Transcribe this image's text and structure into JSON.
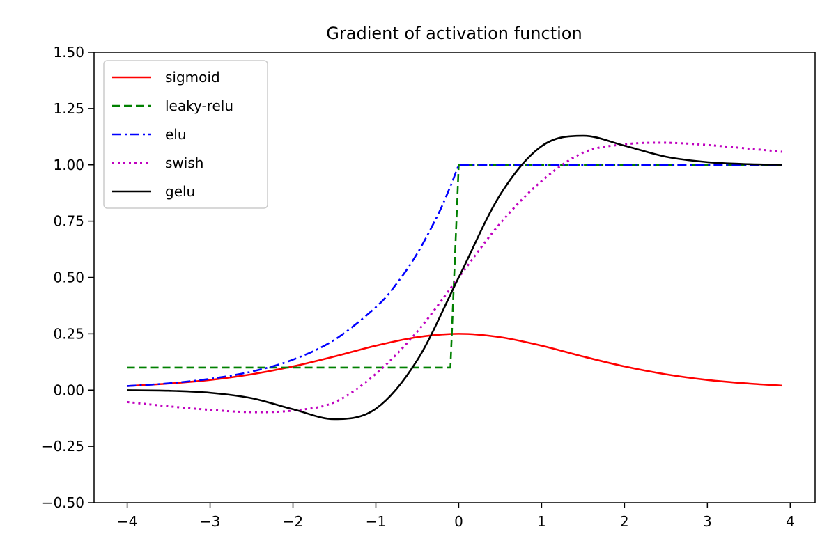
{
  "chart_data": {
    "type": "line",
    "title": "Gradient of activation function",
    "xlabel": "",
    "ylabel": "",
    "xlim": [
      -4.4,
      4.3
    ],
    "ylim": [
      -0.5,
      1.5
    ],
    "x_ticks": [
      -4,
      -3,
      -2,
      -1,
      0,
      1,
      2,
      3,
      4
    ],
    "x_tick_labels": [
      "−4",
      "−3",
      "−2",
      "−1",
      "0",
      "1",
      "2",
      "3",
      "4"
    ],
    "y_ticks": [
      -0.5,
      -0.25,
      0,
      0.25,
      0.5,
      0.75,
      1.0,
      1.25,
      1.5
    ],
    "y_tick_labels": [
      "−0.50",
      "−0.25",
      "0.00",
      "0.25",
      "0.50",
      "0.75",
      "1.00",
      "1.25",
      "1.50"
    ],
    "grid": false,
    "legend_position": "top-left",
    "series": [
      {
        "name": "sigmoid",
        "color": "#ff0000",
        "style": "solid",
        "x": [
          -4.0,
          -3.5,
          -3.0,
          -2.5,
          -2.0,
          -1.5,
          -1.0,
          -0.5,
          0.0,
          0.5,
          1.0,
          1.5,
          2.0,
          2.5,
          3.0,
          3.5,
          3.9
        ],
        "y": [
          0.018,
          0.029,
          0.045,
          0.07,
          0.105,
          0.149,
          0.197,
          0.235,
          0.25,
          0.235,
          0.197,
          0.149,
          0.105,
          0.07,
          0.045,
          0.029,
          0.02
        ]
      },
      {
        "name": "leaky-relu",
        "color": "#008000",
        "style": "dashed",
        "x": [
          -4.0,
          -0.1,
          -0.1,
          0.0,
          3.9
        ],
        "y": [
          0.1,
          0.1,
          0.1,
          1.0,
          1.0
        ]
      },
      {
        "name": "elu",
        "color": "#0000ff",
        "style": "dashdot",
        "x": [
          -4.0,
          -3.5,
          -3.0,
          -2.5,
          -2.0,
          -1.5,
          -1.0,
          -0.75,
          -0.5,
          -0.25,
          -0.1,
          0.0,
          3.9
        ],
        "y": [
          0.018,
          0.03,
          0.05,
          0.082,
          0.135,
          0.223,
          0.368,
          0.472,
          0.607,
          0.779,
          0.905,
          1.0,
          1.0
        ]
      },
      {
        "name": "swish",
        "color": "#bf00bf",
        "style": "dotted",
        "x": [
          -4.0,
          -3.5,
          -3.0,
          -2.5,
          -2.0,
          -1.5,
          -1.0,
          -0.5,
          0.0,
          0.5,
          1.0,
          1.5,
          2.0,
          2.5,
          3.0,
          3.5,
          3.9
        ],
        "y": [
          -0.053,
          -0.072,
          -0.088,
          -0.098,
          -0.091,
          -0.054,
          0.072,
          0.26,
          0.5,
          0.74,
          0.928,
          1.054,
          1.091,
          1.098,
          1.088,
          1.072,
          1.058
        ]
      },
      {
        "name": "gelu",
        "color": "#000000",
        "style": "solid",
        "x": [
          -4.0,
          -3.5,
          -3.0,
          -2.5,
          -2.0,
          -1.5,
          -1.0,
          -0.5,
          0.0,
          0.5,
          1.0,
          1.5,
          2.0,
          2.5,
          3.0,
          3.5,
          3.9
        ],
        "y": [
          -0.0005,
          -0.003,
          -0.012,
          -0.036,
          -0.085,
          -0.129,
          -0.083,
          0.133,
          0.5,
          0.867,
          1.083,
          1.129,
          1.085,
          1.036,
          1.012,
          1.003,
          1.0005
        ]
      }
    ]
  }
}
